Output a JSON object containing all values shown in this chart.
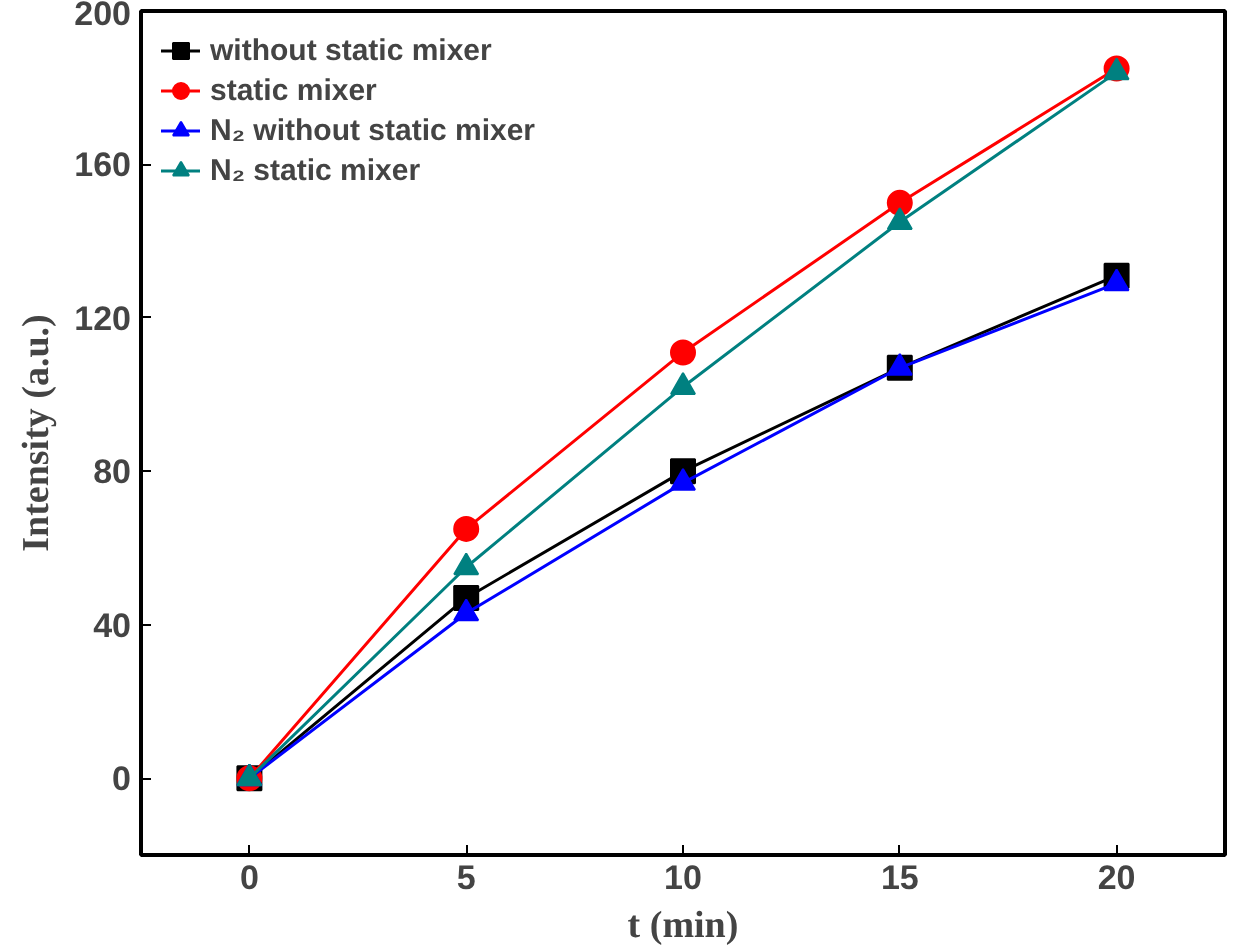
{
  "chart_data": {
    "type": "line",
    "xlabel": "t (min)",
    "ylabel": "Intensity (a.u.)",
    "x": [
      0,
      5,
      10,
      15,
      20
    ],
    "series": [
      {
        "name": "without static mixer",
        "color": "#000000",
        "marker": "square",
        "values": [
          0,
          47,
          80,
          107,
          131
        ]
      },
      {
        "name": "static mixer",
        "color": "#ff0000",
        "marker": "circle",
        "values": [
          0,
          65,
          111,
          150,
          185
        ]
      },
      {
        "name": "N₂ without static mixer",
        "color": "#0000ff",
        "marker": "triangle",
        "values": [
          0,
          43,
          77,
          107,
          129
        ]
      },
      {
        "name": "N₂ static mixer",
        "color": "#008080",
        "marker": "triangle",
        "values": [
          0,
          55,
          102,
          145,
          184
        ]
      }
    ],
    "xlim": [
      -2.5,
      22.5
    ],
    "ylim": [
      -20,
      200
    ],
    "xticks": [
      0,
      5,
      10,
      15,
      20
    ],
    "yticks": [
      0,
      40,
      80,
      120,
      160,
      200
    ],
    "grid": false,
    "legend": "top left",
    "line_style": "solid"
  }
}
